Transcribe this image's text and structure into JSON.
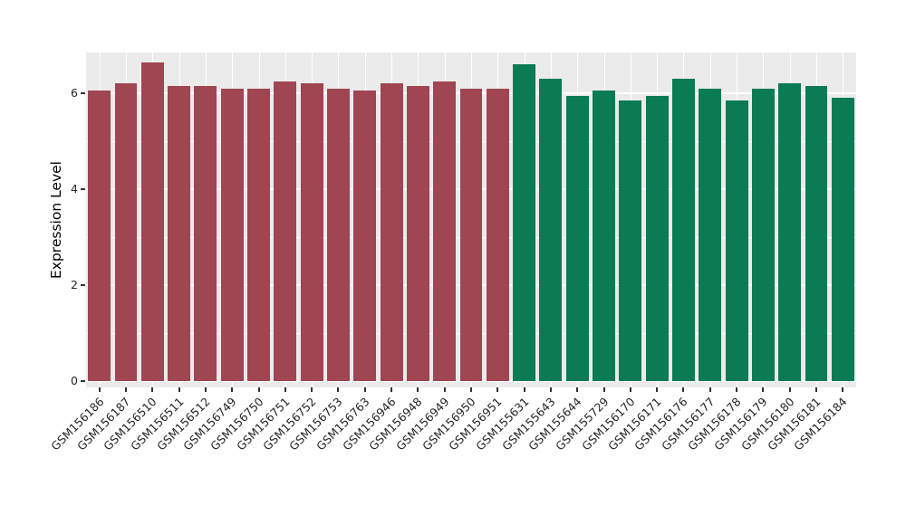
{
  "chart_data": {
    "type": "bar",
    "title": "",
    "xlabel": "",
    "ylabel": "Expression Level",
    "ylim": [
      0,
      6.9
    ],
    "yticks": [
      0,
      2,
      4,
      6
    ],
    "yminor": [
      1,
      3,
      5
    ],
    "grid": "on",
    "legend": "none",
    "panel_background": "#EBEBEB",
    "gridline_color": "#FFFFFF",
    "categories": [
      "GSM156186",
      "GSM156187",
      "GSM156510",
      "GSM156511",
      "GSM156512",
      "GSM156749",
      "GSM156750",
      "GSM156751",
      "GSM156752",
      "GSM156753",
      "GSM156763",
      "GSM156946",
      "GSM156948",
      "GSM156949",
      "GSM156950",
      "GSM156951",
      "GSM155631",
      "GSM155643",
      "GSM155644",
      "GSM155729",
      "GSM156170",
      "GSM156171",
      "GSM156176",
      "GSM156177",
      "GSM156178",
      "GSM156179",
      "GSM156180",
      "GSM156181",
      "GSM156184"
    ],
    "values": [
      6.05,
      6.2,
      6.65,
      6.15,
      6.15,
      6.1,
      6.1,
      6.25,
      6.2,
      6.1,
      6.05,
      6.2,
      6.15,
      6.25,
      6.1,
      6.1,
      6.6,
      6.3,
      5.95,
      6.05,
      5.85,
      5.95,
      6.3,
      6.1,
      5.85,
      6.1,
      6.2,
      6.15,
      5.9
    ],
    "groups": [
      "group1",
      "group1",
      "group1",
      "group1",
      "group1",
      "group1",
      "group1",
      "group1",
      "group1",
      "group1",
      "group1",
      "group1",
      "group1",
      "group1",
      "group1",
      "group1",
      "group2",
      "group2",
      "group2",
      "group2",
      "group2",
      "group2",
      "group2",
      "group2",
      "group2",
      "group2",
      "group2",
      "group2",
      "group2"
    ],
    "group_colors": {
      "group1": "#A04552",
      "group2": "#0A7B53"
    }
  }
}
